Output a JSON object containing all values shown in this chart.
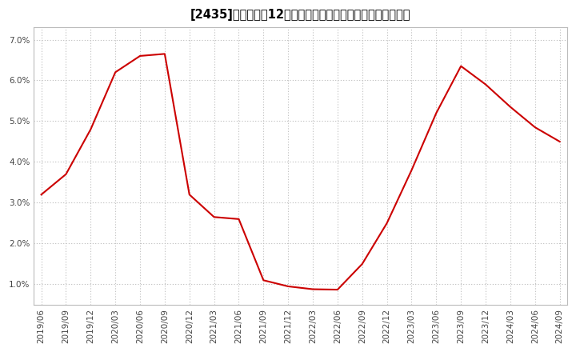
{
  "x_labels": [
    "2019/06",
    "2019/09",
    "2019/12",
    "2020/03",
    "2020/06",
    "2020/09",
    "2020/12",
    "2021/03",
    "2021/06",
    "2021/09",
    "2021/12",
    "2022/03",
    "2022/06",
    "2022/09",
    "2022/12",
    "2023/03",
    "2023/06",
    "2023/09",
    "2023/12",
    "2024/03",
    "2024/06",
    "2024/09"
  ],
  "y_values": [
    3.2,
    3.7,
    4.8,
    6.2,
    6.6,
    6.65,
    3.2,
    2.65,
    2.6,
    1.1,
    0.95,
    0.88,
    0.87,
    1.5,
    2.5,
    3.8,
    5.2,
    6.35,
    5.9,
    5.35,
    4.85,
    4.5
  ],
  "ylim": [
    0.5,
    7.3
  ],
  "yticks": [
    1.0,
    2.0,
    3.0,
    4.0,
    5.0,
    6.0,
    7.0
  ],
  "line_color": "#cc0000",
  "bg_color": "#ffffff",
  "plot_bg_color": "#ffffff",
  "grid_color": "#bbbbbb",
  "title_fontsize": 10.5,
  "tick_fontsize": 7.5
}
